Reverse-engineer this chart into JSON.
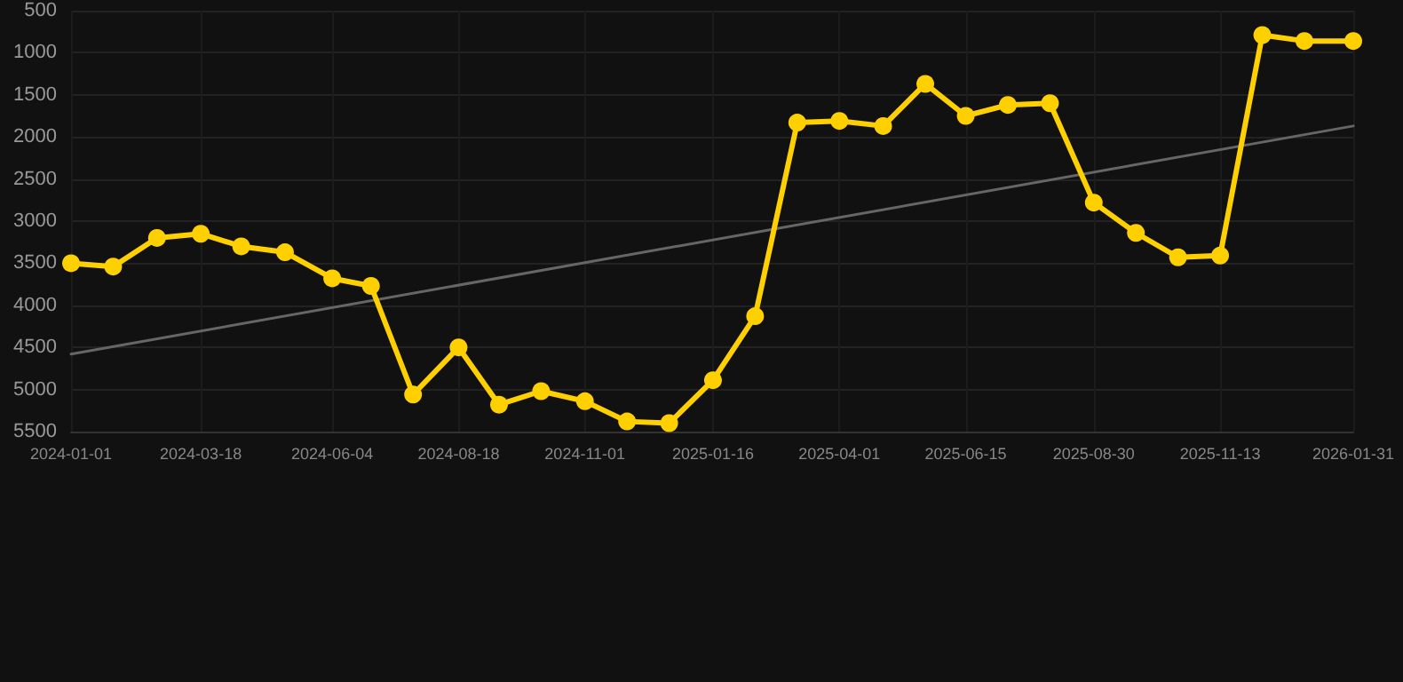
{
  "chart_data": {
    "type": "line",
    "series": [
      {
        "color": "#ffd000",
        "x": [
          "2024-01-01",
          "2024-01-26",
          "2024-02-21",
          "2024-03-18",
          "2024-04-11",
          "2024-05-07",
          "2024-06-04",
          "2024-06-27",
          "2024-07-22",
          "2024-08-18",
          "2024-09-11",
          "2024-10-06",
          "2024-11-01",
          "2024-11-26",
          "2024-12-21",
          "2025-01-16",
          "2025-02-10",
          "2025-03-07",
          "2025-04-01",
          "2025-04-27",
          "2025-05-22",
          "2025-06-15",
          "2025-07-10",
          "2025-08-04",
          "2025-08-30",
          "2025-09-24",
          "2025-10-19",
          "2025-11-13",
          "2025-12-08",
          "2026-01-02",
          "2026-01-31"
        ],
        "values": [
          3500,
          3540,
          3200,
          3150,
          3300,
          3370,
          3680,
          3770,
          5060,
          4500,
          5180,
          5020,
          5140,
          5380,
          5400,
          4890,
          4130,
          1830,
          1810,
          1870,
          1370,
          1750,
          1620,
          1600,
          2780,
          3140,
          3430,
          3410,
          790,
          860,
          860
        ],
        "marker": "circle"
      },
      {
        "color": "#666666",
        "x": [
          "2024-01-01",
          "2026-01-31"
        ],
        "values": [
          4580,
          1870
        ],
        "marker": "none"
      }
    ],
    "xlim": [
      "2024-01-01",
      "2026-01-31"
    ],
    "xticks": [
      {
        "value": "2024-01-01",
        "label": "2024-01-01"
      },
      {
        "value": "2024-03-18",
        "label": "2024-03-18"
      },
      {
        "value": "2024-06-04",
        "label": "2024-06-04"
      },
      {
        "value": "2024-08-18",
        "label": "2024-08-18"
      },
      {
        "value": "2024-11-01",
        "label": "2024-11-01"
      },
      {
        "value": "2025-01-16",
        "label": "2025-01-16"
      },
      {
        "value": "2025-04-01",
        "label": "2025-04-01"
      },
      {
        "value": "2025-06-15",
        "label": "2025-06-15"
      },
      {
        "value": "2025-08-30",
        "label": "2025-08-30"
      },
      {
        "value": "2025-11-13",
        "label": "2025-11-13"
      },
      {
        "value": "2026-01-31",
        "label": "2026-01-31"
      }
    ],
    "ylim": [
      5500,
      500
    ],
    "yticks": [
      500,
      1000,
      1500,
      2000,
      2500,
      3000,
      3500,
      4000,
      4500,
      5000,
      5500
    ],
    "grid": true,
    "line_style": "solid"
  }
}
